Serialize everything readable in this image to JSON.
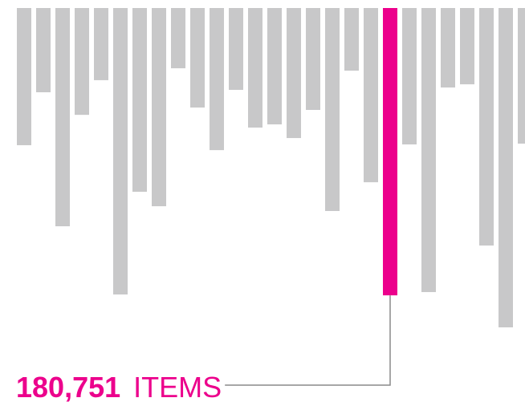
{
  "chart_data": {
    "type": "bar",
    "values": [
      86300,
      53000,
      137300,
      67200,
      45400,
      180200,
      115600,
      124700,
      37900,
      62600,
      89400,
      51500,
      75200,
      73200,
      81800,
      64100,
      127700,
      39400,
      109600,
      180751,
      85800,
      178700,
      50000,
      48000,
      149400,
      200900,
      85300
    ],
    "value_labels": [
      null,
      null,
      null,
      null,
      null,
      null,
      null,
      null,
      null,
      null,
      null,
      null,
      null,
      null,
      null,
      null,
      null,
      null,
      null,
      "180,751",
      null,
      null,
      null,
      null,
      null,
      null,
      null
    ],
    "unit_label": "ITEMS",
    "color": "#c8c8c9",
    "highlight_color": "#ec008c",
    "highlight_index": 19
  }
}
